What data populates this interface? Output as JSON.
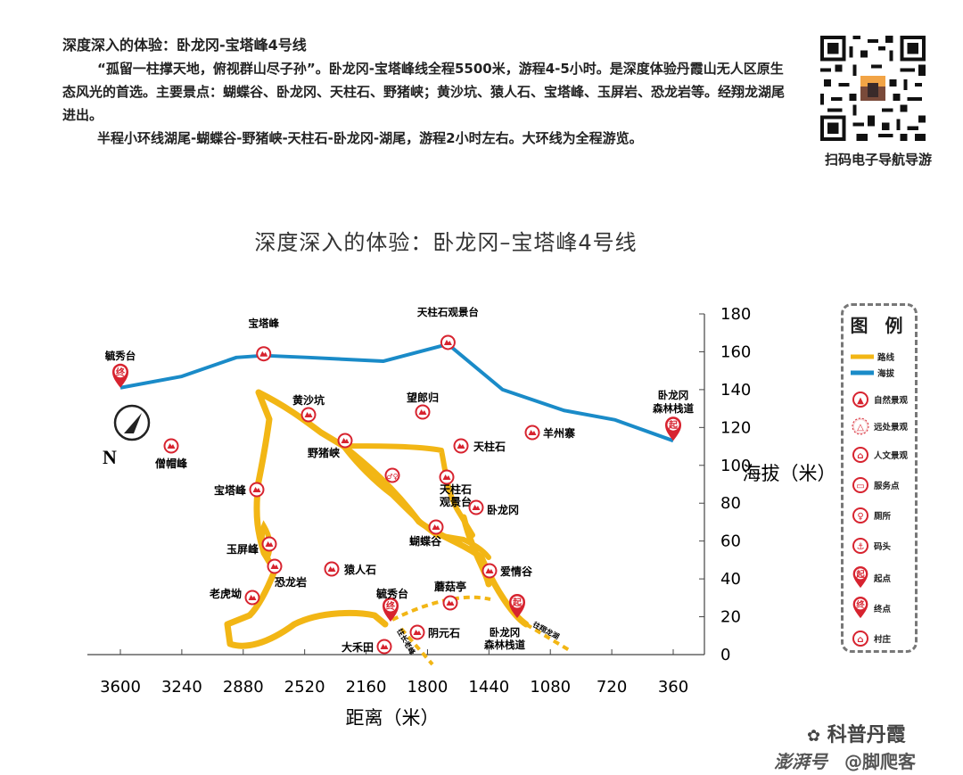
{
  "intro": {
    "title": "深度深入的体验：卧龙冈-宝塔峰4号线",
    "para1": "“孤留一柱撑天地，俯视群山尽子孙”。卧龙冈-宝塔峰线全程5500米，游程4-5小时。是深度体验丹霞山无人区原生态风光的首选。主要景点：蝴蝶谷、卧龙冈、天柱石、野猪峡；黄沙坑、猿人石、宝塔峰、玉屏岩、恐龙岩等。经翔龙湖尾进出。",
    "para2": "半程小环线湖尾-蝴蝶谷-野猪峡-天柱石-卧龙冈-湖尾，游程2小时左右。大环线为全程游览。"
  },
  "qr_label": "扫码电子导航导游",
  "chart_title": "深度深入的体验：卧龙冈–宝塔峰4号线",
  "chart_data": {
    "type": "line",
    "xlabel": "距离（米）",
    "ylabel": "海拔（米）",
    "x_ticks": [
      "3600",
      "3240",
      "2880",
      "2520",
      "2160",
      "1800",
      "1440",
      "1080",
      "720",
      "360"
    ],
    "y_ticks": [
      "0",
      "20",
      "40",
      "60",
      "80",
      "100",
      "120",
      "140",
      "160",
      "180"
    ],
    "ylim": [
      0,
      180
    ],
    "xlim": [
      3600,
      360
    ],
    "series": [
      {
        "values": [
          {
            "x": 3600,
            "y": 141
          },
          {
            "x": 3240,
            "y": 147
          },
          {
            "x": 2920,
            "y": 157
          },
          {
            "x": 2760,
            "y": 158
          },
          {
            "x": 2500,
            "y": 157
          },
          {
            "x": 2060,
            "y": 155
          },
          {
            "x": 1680,
            "y": 164
          },
          {
            "x": 1360,
            "y": 140
          },
          {
            "x": 1000,
            "y": 129
          },
          {
            "x": 700,
            "y": 124
          },
          {
            "x": 360,
            "y": 113
          }
        ]
      }
    ],
    "profile_labels": [
      {
        "text": "毓秀台",
        "x": 3600,
        "y": 141,
        "icon": "终"
      },
      {
        "text": "宝塔峰",
        "x": 2760,
        "y": 158,
        "icon": "natural"
      },
      {
        "text": "天柱石观景台",
        "x": 1680,
        "y": 164,
        "icon": "natural"
      },
      {
        "text": "卧龙冈\n森林栈道",
        "x": 360,
        "y": 113,
        "icon": "起"
      }
    ]
  },
  "map_labels": {
    "huangshakeng": "黄沙坑",
    "wanglanggui": "望郎归",
    "yezhuxia": "野猪峡",
    "tianzhushi": "天柱石",
    "yangzhouzhai": "羊州寨",
    "sengmaofeng": "僧帽峰",
    "baotafeng": "宝塔峰",
    "tianzhushi_gjt": "天柱石\n观景台",
    "wolonggang": "卧龙冈",
    "hudiegu": "蝴蝶谷",
    "yupingfeng": "玉屏峰",
    "yuanrenshi": "猿人石",
    "aiqinggu": "爱情谷",
    "konglongyan": "恐龙岩",
    "laohuao": "老虎坳",
    "moguting": "蘑菇亭",
    "yuxiutai": "毓秀台",
    "yinyuanshi": "阴元石",
    "dahetian": "大禾田",
    "wolong_zd": "卧龙冈\n森林栈道",
    "wang_lj": "往长老峰",
    "wang_xl": "往翔龙湖",
    "north": "N"
  },
  "legend": {
    "title": "图 例",
    "items": [
      {
        "label": "路线",
        "icon": "route-line"
      },
      {
        "label": "海拔",
        "icon": "altitude-line"
      },
      {
        "label": "自然景观",
        "icon": "natural-icon"
      },
      {
        "label": "远处景观",
        "icon": "distant-icon"
      },
      {
        "label": "人文景观",
        "icon": "culture-icon"
      },
      {
        "label": "服务点",
        "icon": "service-icon"
      },
      {
        "label": "厕所",
        "icon": "toilet-icon"
      },
      {
        "label": "码头",
        "icon": "dock-icon"
      },
      {
        "label": "起点",
        "icon": "start-icon"
      },
      {
        "label": "终点",
        "icon": "end-icon"
      },
      {
        "label": "村庄",
        "icon": "village-icon"
      }
    ],
    "start_char": "起",
    "end_char": "终"
  },
  "watermark": {
    "line1": "科普丹霞",
    "line2": "澎湃号",
    "line3": "@脚爬客"
  },
  "colors": {
    "route": "#f2b615",
    "altitude": "#1a8bc8",
    "marker": "#d7232f"
  }
}
